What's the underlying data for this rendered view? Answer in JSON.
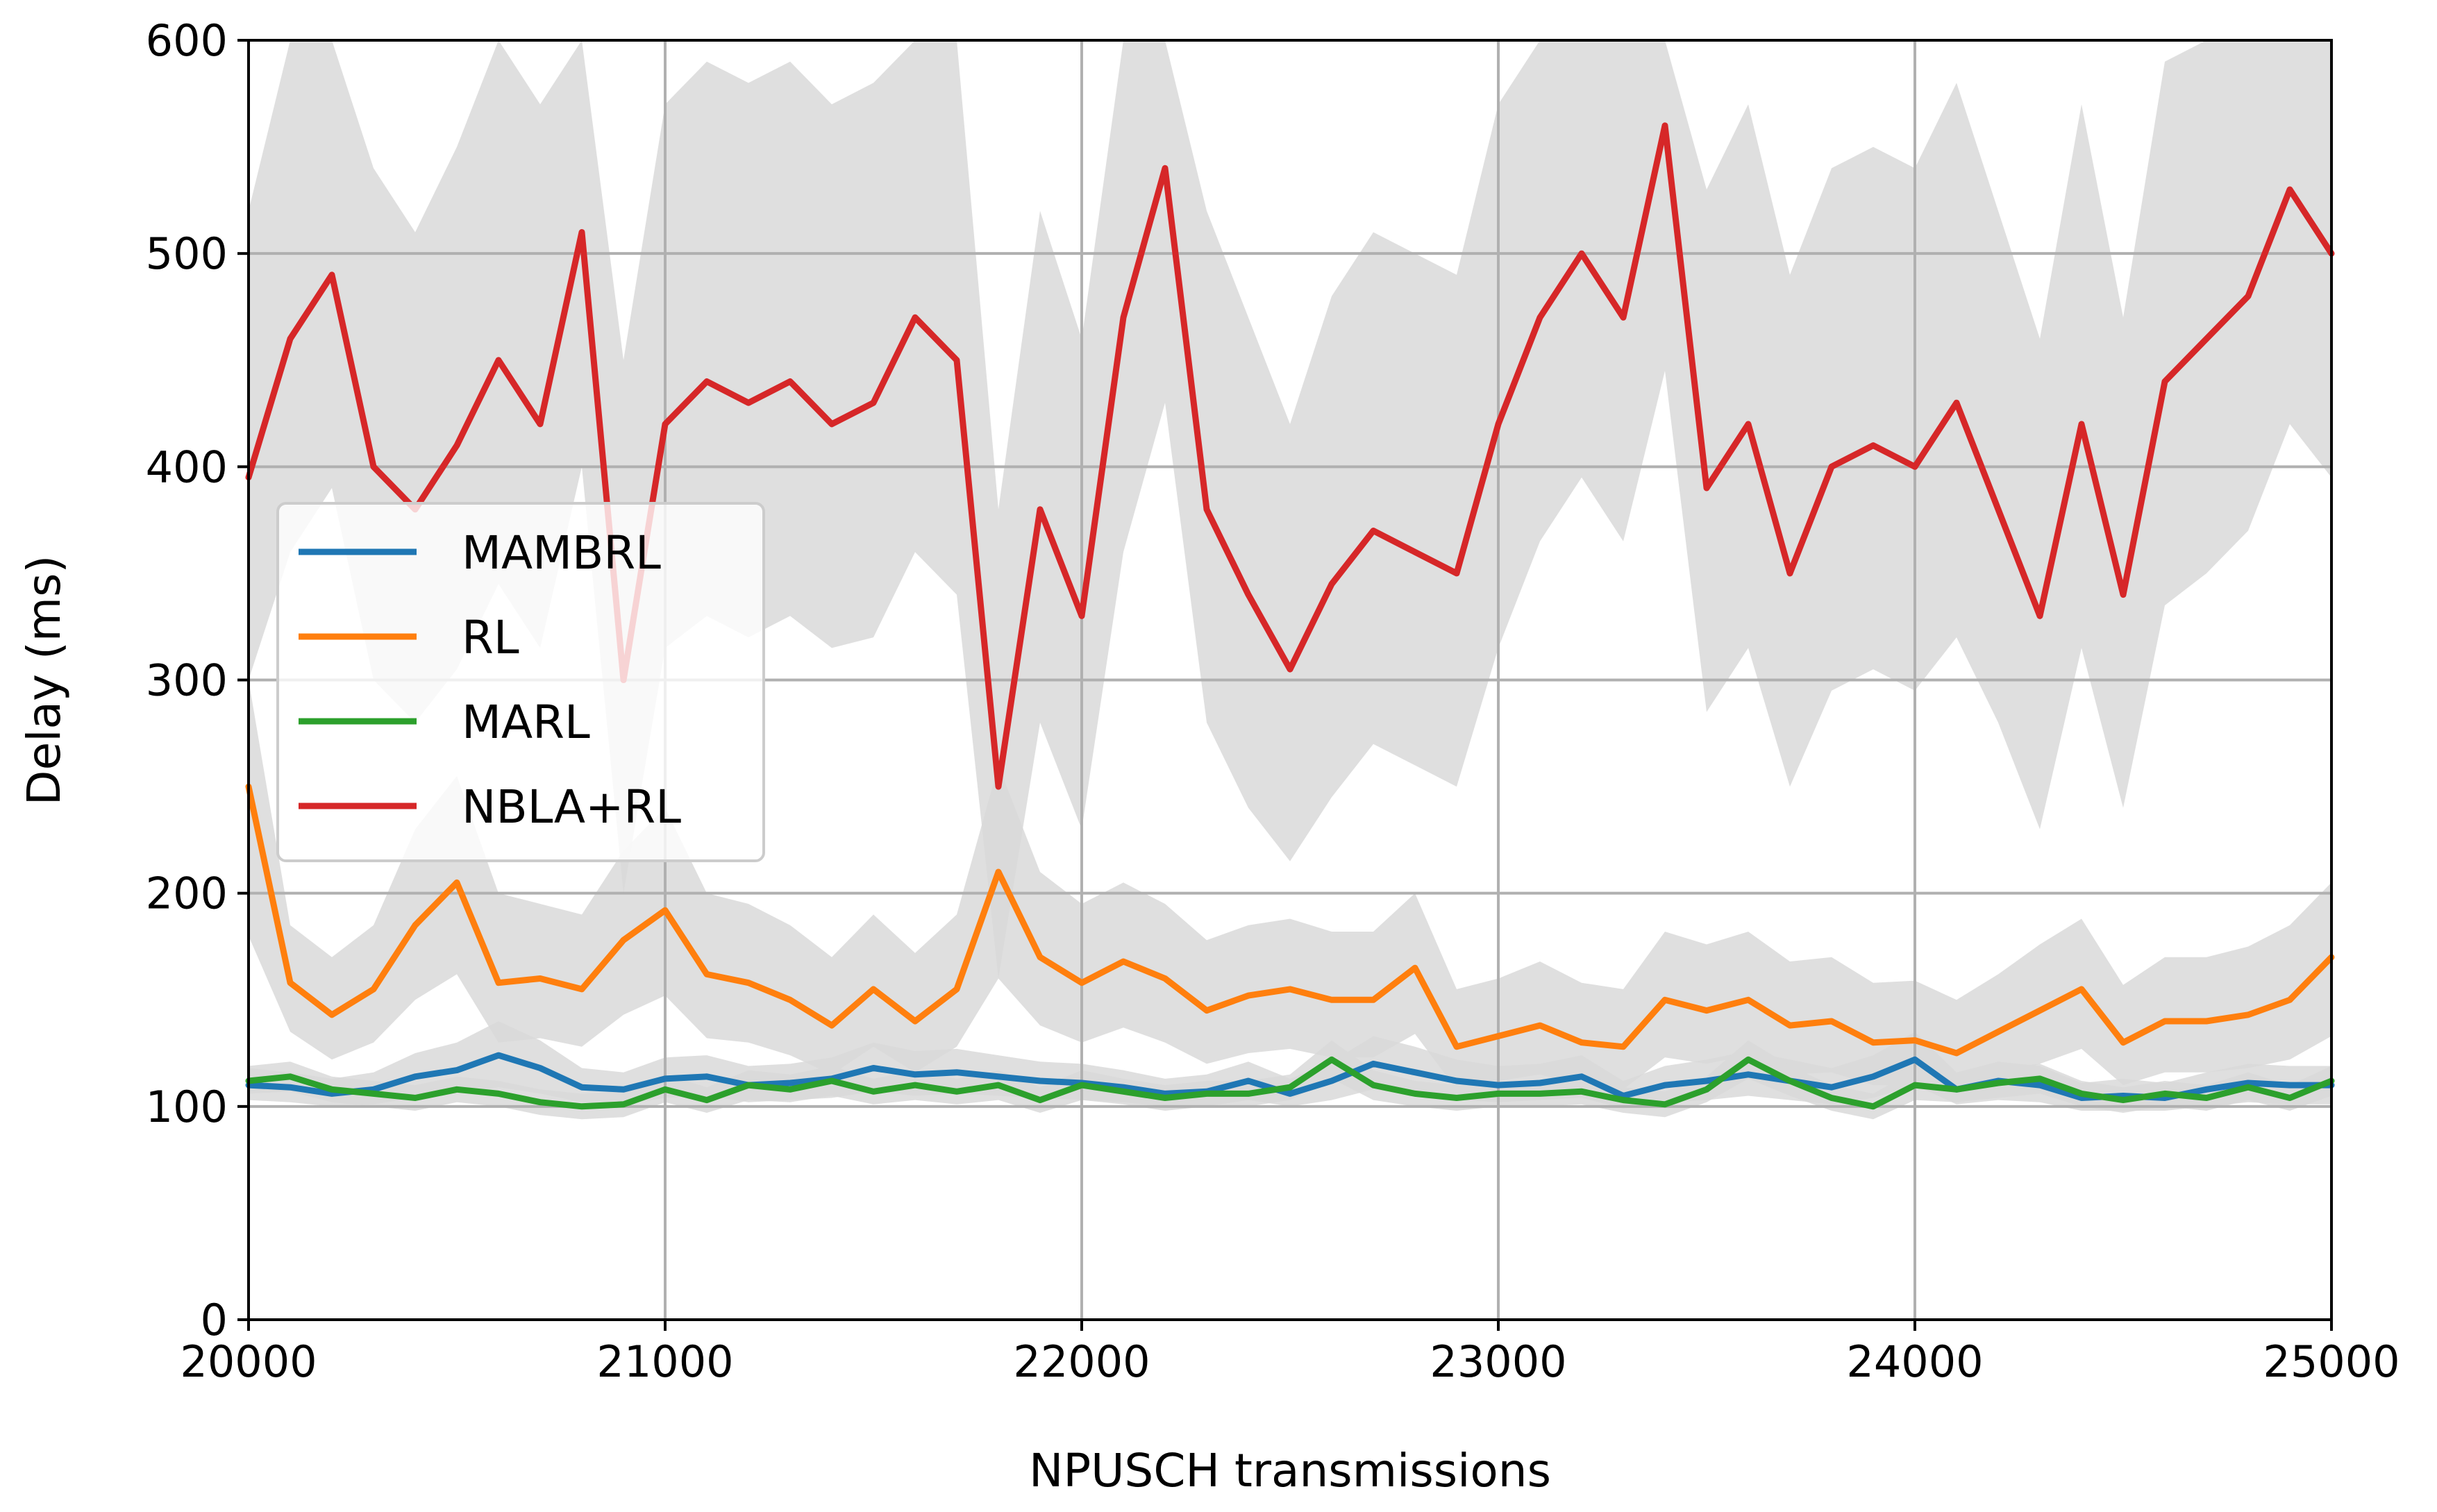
{
  "chart_data": {
    "type": "line",
    "title": "",
    "xlabel": "NPUSCH transmissions",
    "ylabel": "Delay (ms)",
    "xlim": [
      20000,
      25000
    ],
    "ylim": [
      0,
      600
    ],
    "x_ticks": [
      20000,
      21000,
      22000,
      23000,
      24000,
      25000
    ],
    "y_ticks": [
      0,
      100,
      200,
      300,
      400,
      500,
      600
    ],
    "x_tick_labels": [
      "20000",
      "21000",
      "22000",
      "23000",
      "24000",
      "25000"
    ],
    "y_tick_labels": [
      "0",
      "100",
      "200",
      "300",
      "400",
      "500",
      "600"
    ],
    "grid": true,
    "legend_placement": "center-left",
    "x": [
      20000,
      20100,
      20200,
      20300,
      20400,
      20500,
      20600,
      20700,
      20800,
      20900,
      21000,
      21100,
      21200,
      21300,
      21400,
      21500,
      21600,
      21700,
      21800,
      21900,
      22000,
      22100,
      22200,
      22300,
      22400,
      22500,
      22600,
      22700,
      22800,
      22900,
      23000,
      23100,
      23200,
      23300,
      23400,
      23500,
      23600,
      23700,
      23800,
      23900,
      24000,
      24100,
      24200,
      24300,
      24400,
      24500,
      24600,
      24700,
      24800,
      24900,
      25000
    ],
    "series": [
      {
        "name": "MAMBRL",
        "color": "#1f77b4",
        "values": [
          110,
          109,
          106,
          108,
          114,
          117,
          124,
          118,
          109,
          108,
          113,
          114,
          110,
          111,
          113,
          118,
          115,
          116,
          114,
          112,
          111,
          109,
          106,
          107,
          112,
          106,
          112,
          120,
          116,
          112,
          110,
          111,
          114,
          105,
          110,
          112,
          115,
          112,
          109,
          114,
          122,
          108,
          112,
          110,
          104,
          105,
          104,
          108,
          111,
          110,
          110
        ],
        "band_low": [
          103,
          102,
          100,
          101,
          104,
          106,
          109,
          106,
          102,
          101,
          104,
          105,
          102,
          103,
          104,
          107,
          105,
          106,
          105,
          104,
          103,
          102,
          100,
          100,
          103,
          100,
          103,
          108,
          105,
          103,
          102,
          103,
          104,
          99,
          102,
          103,
          105,
          103,
          101,
          104,
          110,
          101,
          103,
          102,
          98,
          98,
          98,
          100,
          102,
          101,
          101
        ],
        "band_high": [
          118,
          116,
          113,
          116,
          125,
          130,
          140,
          131,
          118,
          116,
          123,
          124,
          119,
          120,
          123,
          130,
          126,
          127,
          124,
          121,
          120,
          117,
          113,
          115,
          121,
          113,
          121,
          133,
          128,
          122,
          119,
          120,
          124,
          112,
          119,
          122,
          126,
          122,
          118,
          124,
          135,
          116,
          121,
          119,
          111,
          113,
          111,
          116,
          120,
          119,
          119
        ]
      },
      {
        "name": "RL",
        "color": "#ff7f0e",
        "values": [
          250,
          158,
          143,
          155,
          185,
          205,
          158,
          160,
          155,
          178,
          192,
          162,
          158,
          150,
          138,
          155,
          140,
          155,
          210,
          170,
          158,
          168,
          160,
          145,
          152,
          155,
          150,
          150,
          165,
          128,
          133,
          138,
          130,
          128,
          150,
          145,
          150,
          138,
          140,
          130,
          131,
          125,
          135,
          145,
          155,
          130,
          140,
          140,
          143,
          150,
          170
        ],
        "band_low": [
          180,
          135,
          122,
          130,
          150,
          162,
          130,
          132,
          128,
          143,
          152,
          132,
          130,
          124,
          115,
          128,
          116,
          128,
          160,
          138,
          130,
          137,
          130,
          120,
          125,
          127,
          123,
          123,
          134,
          108,
          112,
          115,
          110,
          108,
          123,
          120,
          124,
          115,
          116,
          110,
          110,
          106,
          113,
          120,
          127,
          110,
          116,
          116,
          118,
          122,
          133
        ],
        "band_high": [
          300,
          185,
          170,
          185,
          230,
          255,
          200,
          195,
          190,
          220,
          240,
          200,
          195,
          185,
          170,
          190,
          172,
          190,
          260,
          210,
          195,
          205,
          195,
          178,
          185,
          188,
          182,
          182,
          200,
          155,
          160,
          168,
          158,
          155,
          182,
          176,
          182,
          168,
          170,
          158,
          159,
          150,
          162,
          176,
          188,
          157,
          170,
          170,
          175,
          185,
          205
        ]
      },
      {
        "name": "MARL",
        "color": "#2ca02c",
        "values": [
          112,
          114,
          108,
          106,
          104,
          108,
          106,
          102,
          100,
          101,
          108,
          103,
          110,
          108,
          112,
          107,
          110,
          107,
          110,
          103,
          110,
          107,
          104,
          106,
          106,
          109,
          122,
          110,
          106,
          104,
          106,
          106,
          107,
          103,
          101,
          108,
          122,
          112,
          104,
          100,
          110,
          108,
          111,
          113,
          106,
          103,
          106,
          104,
          109,
          104,
          112
        ],
        "band_low": [
          106,
          107,
          102,
          100,
          98,
          102,
          100,
          96,
          94,
          95,
          102,
          97,
          103,
          102,
          105,
          101,
          103,
          101,
          103,
          97,
          103,
          101,
          98,
          100,
          100,
          103,
          113,
          103,
          100,
          98,
          100,
          100,
          101,
          97,
          95,
          102,
          113,
          105,
          98,
          94,
          103,
          102,
          104,
          106,
          100,
          97,
          100,
          98,
          103,
          98,
          105
        ],
        "band_high": [
          119,
          121,
          114,
          112,
          110,
          114,
          112,
          108,
          106,
          107,
          115,
          109,
          117,
          115,
          119,
          113,
          117,
          113,
          117,
          109,
          117,
          113,
          110,
          112,
          112,
          115,
          131,
          117,
          112,
          110,
          112,
          112,
          113,
          109,
          107,
          114,
          131,
          119,
          110,
          106,
          117,
          115,
          118,
          120,
          112,
          109,
          112,
          110,
          116,
          110,
          119
        ]
      },
      {
        "name": "NBLA+RL",
        "color": "#d62728",
        "values": [
          395,
          460,
          490,
          400,
          380,
          410,
          450,
          420,
          510,
          300,
          420,
          440,
          430,
          440,
          420,
          430,
          470,
          450,
          250,
          380,
          330,
          470,
          540,
          380,
          340,
          305,
          345,
          370,
          360,
          350,
          420,
          470,
          500,
          470,
          560,
          390,
          420,
          350,
          400,
          410,
          400,
          430,
          380,
          330,
          420,
          340,
          440,
          460,
          480,
          530,
          500
        ],
        "band_low": [
          300,
          360,
          390,
          300,
          280,
          305,
          345,
          315,
          400,
          200,
          315,
          330,
          320,
          330,
          315,
          320,
          360,
          340,
          160,
          280,
          230,
          360,
          430,
          280,
          240,
          215,
          245,
          270,
          260,
          250,
          315,
          365,
          395,
          365,
          445,
          285,
          315,
          250,
          295,
          305,
          295,
          320,
          280,
          230,
          315,
          240,
          335,
          350,
          370,
          420,
          395
        ],
        "band_high": [
          520,
          600,
          600,
          540,
          510,
          550,
          600,
          570,
          600,
          450,
          570,
          590,
          580,
          590,
          570,
          580,
          600,
          600,
          380,
          520,
          460,
          600,
          600,
          520,
          470,
          420,
          480,
          510,
          500,
          490,
          570,
          600,
          600,
          600,
          600,
          530,
          570,
          490,
          540,
          550,
          540,
          580,
          520,
          460,
          570,
          470,
          590,
          600,
          600,
          600,
          600
        ]
      }
    ]
  }
}
